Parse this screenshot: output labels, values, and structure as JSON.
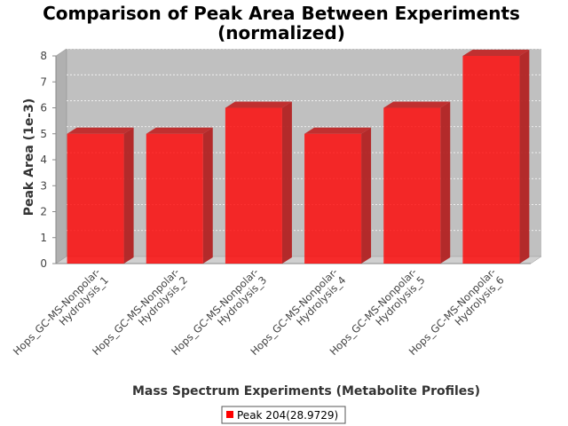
{
  "chart_data": {
    "type": "bar",
    "title": "Comparison of Peak Area Between Experiments",
    "subtitle": "(normalized)",
    "xlabel": "Mass Spectrum Experiments (Metabolite Profiles)",
    "ylabel": "Peak Area (1e-3)",
    "ylim": [
      0,
      8
    ],
    "yticks": [
      "0",
      "1",
      "2",
      "3",
      "4",
      "5",
      "6",
      "7",
      "8"
    ],
    "grid": true,
    "legend_position": "bottom",
    "categories": [
      [
        "Hops_GC-MS-Nonpolar-",
        "Hydrolysis_1"
      ],
      [
        "Hops_GC-MS-Nonpolar-",
        "Hydrolysis_2"
      ],
      [
        "Hops_GC-MS-Nonpolar-",
        "Hydrolysis_3"
      ],
      [
        "Hops_GC-MS-Nonpolar-",
        "Hydrolysis_4"
      ],
      [
        "Hops_GC-MS-Nonpolar-",
        "Hydrolysis_5"
      ],
      [
        "Hops_GC-MS-Nonpolar-",
        "Hydrolysis_6"
      ]
    ],
    "series": [
      {
        "name": "Peak 204(28.9729)",
        "color": "#ff0000",
        "values": [
          5,
          5,
          6,
          5,
          6,
          8
        ]
      }
    ]
  }
}
